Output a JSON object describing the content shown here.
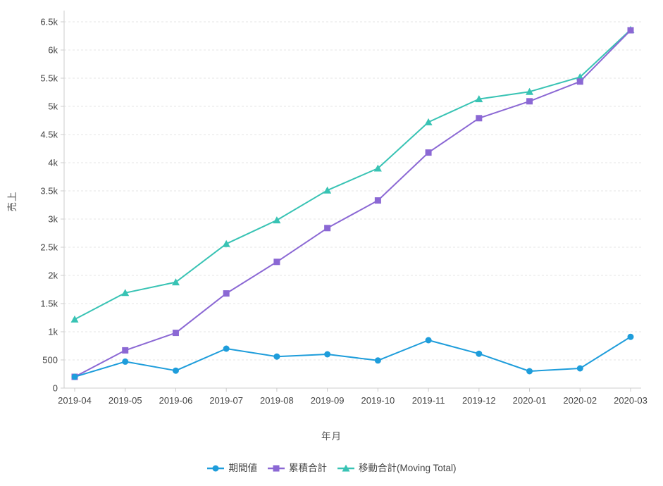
{
  "axes": {
    "x_title": "年月",
    "y_title": "売上"
  },
  "chart_data": {
    "type": "line",
    "title": "",
    "xlabel": "年月",
    "ylabel": "売上",
    "grid": true,
    "legend_position": "bottom",
    "ylim": [
      0,
      6500
    ],
    "ytick_step": 500,
    "ytick_labels": [
      "0",
      "500",
      "1k",
      "1.5k",
      "2k",
      "2.5k",
      "3k",
      "3.5k",
      "4k",
      "4.5k",
      "5k",
      "5.5k",
      "6k",
      "6.5k"
    ],
    "categories": [
      "2019-04",
      "2019-05",
      "2019-06",
      "2019-07",
      "2019-08",
      "2019-09",
      "2019-10",
      "2019-11",
      "2019-12",
      "2020-01",
      "2020-02",
      "2020-03"
    ],
    "series": [
      {
        "name": "期間値",
        "marker": "circle",
        "color": "#1e9ddb",
        "values": [
          200,
          470,
          310,
          700,
          560,
          600,
          490,
          850,
          610,
          300,
          350,
          910
        ]
      },
      {
        "name": "累積合計",
        "marker": "square",
        "color": "#8b68d4",
        "values": [
          200,
          670,
          980,
          1680,
          2240,
          2840,
          3330,
          4180,
          4790,
          5090,
          5440,
          6350
        ]
      },
      {
        "name": "移動合計(Moving Total)",
        "marker": "triangle",
        "color": "#38c3b4",
        "values": [
          1220,
          1690,
          1880,
          2560,
          2980,
          3510,
          3900,
          4720,
          5130,
          5260,
          5520,
          6360
        ]
      }
    ],
    "colors": {
      "grid": "#e4e4e4",
      "axis_line": "#cccccc",
      "tick_text": "#444444",
      "axis_title_text": "#555555"
    }
  }
}
